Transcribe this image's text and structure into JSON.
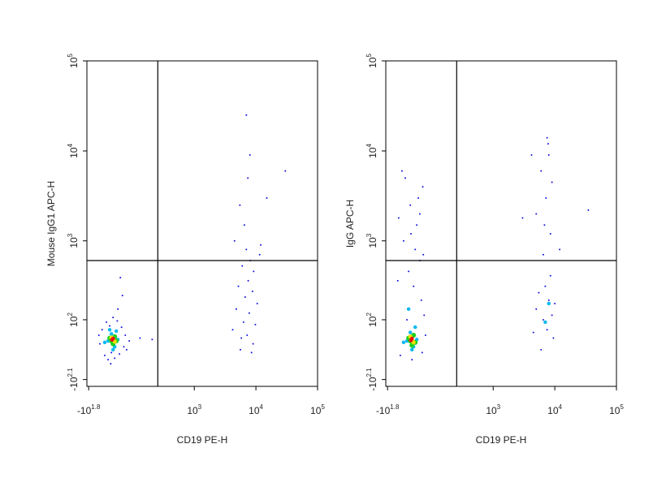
{
  "chart_data": [
    {
      "type": "scatter",
      "xlabel": "CD19 PE-H",
      "ylabel": "Mouse IgG1 APC-H",
      "xlim": [
        -70,
        100000
      ],
      "ylim": [
        -160,
        100000
      ],
      "xticks": [
        {
          "value": -63.1,
          "label": "-10",
          "sup": "1.8"
        },
        {
          "value": 1000,
          "label": "10",
          "sup": "3"
        },
        {
          "value": 10000,
          "label": "10",
          "sup": "4"
        },
        {
          "value": 100000,
          "label": "10",
          "sup": "5"
        }
      ],
      "yticks": [
        {
          "value": -125.9,
          "label": "-10",
          "sup": "2.1"
        },
        {
          "value": 100,
          "label": "10",
          "sup": "2"
        },
        {
          "value": 1000,
          "label": "10",
          "sup": "3"
        },
        {
          "value": 10000,
          "label": "10",
          "sup": "4"
        },
        {
          "value": 100000,
          "label": "10",
          "sup": "5"
        }
      ],
      "gate": {
        "x": 250,
        "y": 600
      },
      "series": [
        {
          "color": "#1010e0",
          "x": [
            -25,
            -18,
            -10,
            -5,
            0,
            5,
            10,
            15,
            20,
            28,
            35,
            42,
            50,
            55,
            -28,
            60,
            30,
            45,
            38,
            70,
            120,
            200,
            8,
            4200,
            4800,
            5200,
            5600,
            6000,
            6300,
            6700,
            7000,
            7200,
            7500,
            7800,
            8100,
            8500,
            8800,
            9200,
            9800,
            10500,
            11500,
            6500,
            5500,
            7400,
            7000,
            15000,
            30000,
            8000,
            12000,
            4500,
            5800,
            9000
          ],
          "y": [
            10,
            60,
            -30,
            90,
            -45,
            75,
            -20,
            110,
            -40,
            95,
            -25,
            70,
            0,
            40,
            40,
            -10,
            150,
            230,
            380,
            20,
            30,
            25,
            -60,
            60,
            150,
            300,
            -10,
            520,
            90,
            220,
            800,
            40,
            350,
            130,
            600,
            -20,
            260,
            450,
            80,
            180,
            700,
            1500,
            2500,
            5000,
            25000,
            3000,
            6000,
            9000,
            900,
            1000,
            30,
            10
          ]
        },
        {
          "color": "#00b8f0",
          "x": [
            0,
            10,
            20,
            30,
            -10,
            15,
            25,
            5
          ],
          "y": [
            20,
            45,
            0,
            25,
            15,
            -10,
            55,
            60
          ]
        },
        {
          "color": "#20d020",
          "x": [
            10,
            20,
            15,
            5,
            25
          ],
          "y": [
            20,
            35,
            10,
            30,
            20
          ]
        },
        {
          "color": "#f0e000",
          "x": [
            15,
            10,
            20
          ],
          "y": [
            25,
            32,
            18
          ]
        },
        {
          "color": "#f01010",
          "x": [
            15,
            12
          ],
          "y": [
            28,
            24
          ]
        }
      ]
    },
    {
      "type": "scatter",
      "xlabel": "CD19 PE-H",
      "ylabel": "IgG APC-H",
      "xlim": [
        -70,
        100000
      ],
      "ylim": [
        -160,
        100000
      ],
      "xticks": [
        {
          "value": -63.1,
          "label": "-10",
          "sup": "1.8"
        },
        {
          "value": 1000,
          "label": "10",
          "sup": "3"
        },
        {
          "value": 10000,
          "label": "10",
          "sup": "4"
        },
        {
          "value": 100000,
          "label": "10",
          "sup": "5"
        }
      ],
      "yticks": [
        {
          "value": -125.9,
          "label": "-10",
          "sup": "2.1"
        },
        {
          "value": 100,
          "label": "10",
          "sup": "2"
        },
        {
          "value": 1000,
          "label": "10",
          "sup": "3"
        },
        {
          "value": 10000,
          "label": "10",
          "sup": "4"
        },
        {
          "value": 100000,
          "label": "10",
          "sup": "5"
        }
      ],
      "gate": {
        "x": 250,
        "y": 600
      },
      "series": [
        {
          "color": "#1010e0",
          "x": [
            -20,
            0,
            20,
            40,
            -10,
            30,
            10,
            50,
            -15,
            25,
            45,
            5,
            35,
            -25,
            55,
            15,
            48,
            -5,
            28,
            40,
            60,
            -28,
            12,
            52,
            4500,
            5000,
            5500,
            6000,
            6500,
            7000,
            7500,
            8000,
            8500,
            9000,
            9500,
            10000,
            6800,
            7200,
            6000,
            8000,
            7500,
            5000,
            9000,
            6500,
            8500,
            12000,
            35000,
            3000,
            7800,
            4200
          ],
          "y": [
            -30,
            100,
            300,
            600,
            1000,
            1500,
            2500,
            4000,
            6000,
            800,
            200,
            450,
            3000,
            1800,
            120,
            -45,
            -20,
            5000,
            70,
            2000,
            40,
            350,
            1200,
            700,
            50,
            150,
            250,
            -10,
            100,
            300,
            60,
            200,
            400,
            120,
            30,
            180,
            1500,
            3000,
            6000,
            9000,
            14000,
            2000,
            4500,
            700,
            1200,
            800,
            2200,
            1800,
            12000,
            9000
          ]
        },
        {
          "color": "#00b8f0",
          "x": [
            0,
            10,
            20,
            30,
            -10,
            15,
            25,
            5,
            8000,
            7000
          ],
          "y": [
            20,
            50,
            0,
            25,
            15,
            -10,
            70,
            150,
            180,
            90
          ]
        },
        {
          "color": "#20d020",
          "x": [
            10,
            20,
            15,
            5,
            25
          ],
          "y": [
            20,
            40,
            5,
            30,
            15
          ]
        },
        {
          "color": "#f0e000",
          "x": [
            15,
            10,
            20
          ],
          "y": [
            25,
            35,
            15
          ]
        },
        {
          "color": "#f01010",
          "x": [
            15,
            12
          ],
          "y": [
            28,
            22
          ]
        }
      ]
    }
  ]
}
